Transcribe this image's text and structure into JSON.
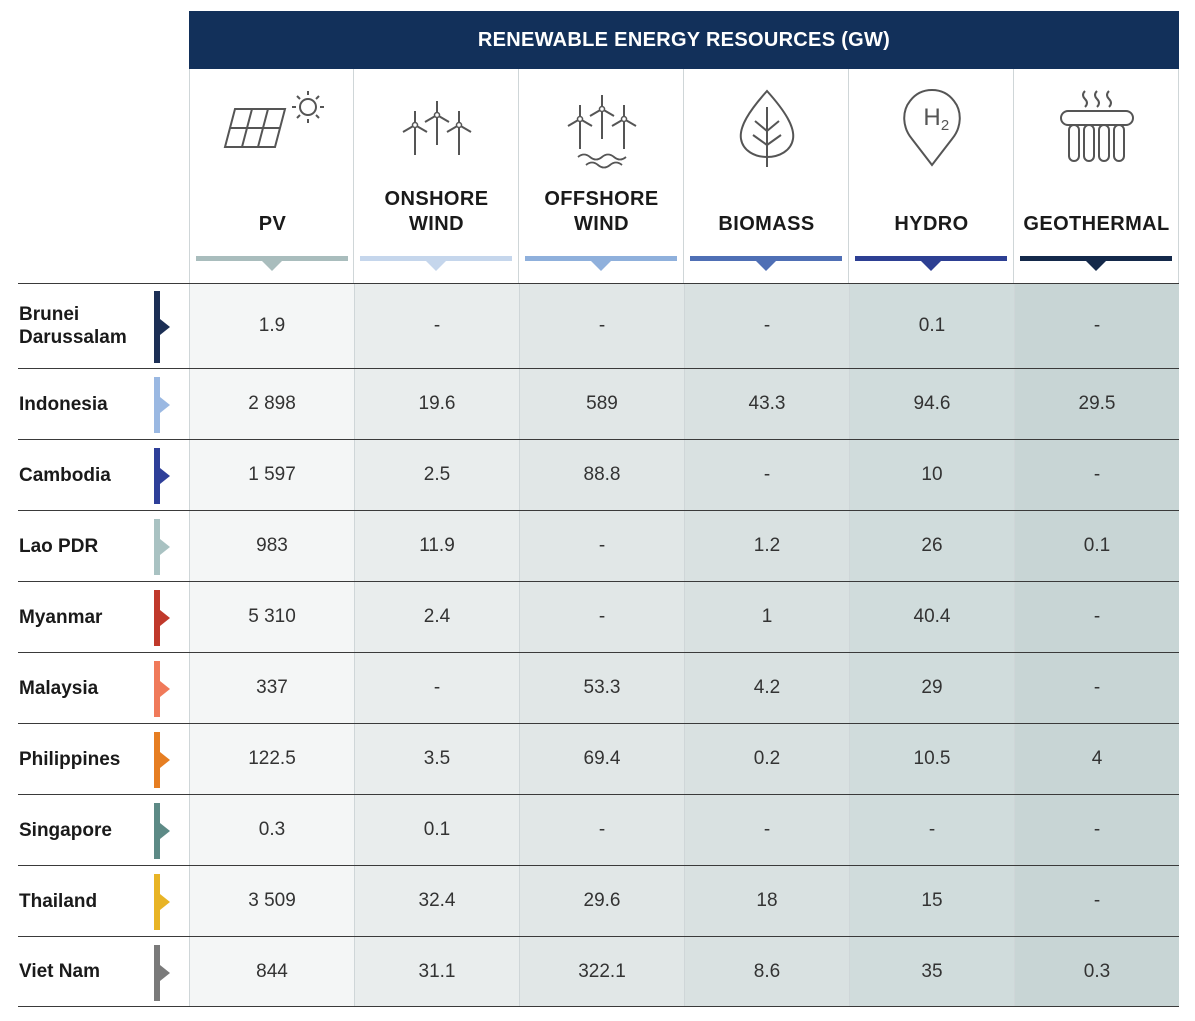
{
  "title": "RENEWABLE ENERGY RESOURCES (GW)",
  "columns": [
    {
      "label": "PV",
      "icon": "solar-panel-icon",
      "color": "#a9bdbd"
    },
    {
      "label": "ONSHORE\nWIND",
      "icon": "wind-turbine-icon",
      "color": "#c5d6ec"
    },
    {
      "label": "OFFSHORE\nWIND",
      "icon": "offshore-wind-icon",
      "color": "#8fb0dc"
    },
    {
      "label": "BIOMASS",
      "icon": "leaf-icon",
      "color": "#4f6fb5"
    },
    {
      "label": "HYDRO",
      "icon": "hydrogen-pin-icon",
      "color": "#2d3f93"
    },
    {
      "label": "GEOTHERMAL",
      "icon": "geothermal-icon",
      "color": "#14294a"
    }
  ],
  "column_bg": [
    "#f4f6f6",
    "#e9eded",
    "#e1e7e7",
    "#d9e1e1",
    "#d0dcdc",
    "#c8d5d5"
  ],
  "rows": [
    {
      "country": "Brunei\nDarussalam",
      "color": "#1c2f55",
      "values": [
        "1.9",
        "-",
        "-",
        "-",
        "0.1",
        "-"
      ]
    },
    {
      "country": "Indonesia",
      "color": "#9ab8e2",
      "values": [
        "2 898",
        "19.6",
        "589",
        "43.3",
        "94.6",
        "29.5"
      ]
    },
    {
      "country": "Cambodia",
      "color": "#2e3f99",
      "values": [
        "1 597",
        "2.5",
        "88.8",
        "-",
        "10",
        "-"
      ]
    },
    {
      "country": "Lao PDR",
      "color": "#a9c2c2",
      "values": [
        "983",
        "11.9",
        "-",
        "1.2",
        "26",
        "0.1"
      ]
    },
    {
      "country": "Myanmar",
      "color": "#c0392b",
      "values": [
        "5 310",
        "2.4",
        "-",
        "1",
        "40.4",
        "-"
      ]
    },
    {
      "country": "Malaysia",
      "color": "#f07a5a",
      "values": [
        "337",
        "-",
        "53.3",
        "4.2",
        "29",
        "-"
      ]
    },
    {
      "country": "Philippines",
      "color": "#e67e22",
      "values": [
        "122.5",
        "3.5",
        "69.4",
        "0.2",
        "10.5",
        "4"
      ]
    },
    {
      "country": "Singapore",
      "color": "#5d8a86",
      "values": [
        "0.3",
        "0.1",
        "-",
        "-",
        "-",
        "-"
      ]
    },
    {
      "country": "Thailand",
      "color": "#e8b426",
      "values": [
        "3 509",
        "32.4",
        "29.6",
        "18",
        "15",
        "-"
      ]
    },
    {
      "country": "Viet Nam",
      "color": "#7a7a7a",
      "values": [
        "844",
        "31.1",
        "322.1",
        "8.6",
        "35",
        "0.3"
      ]
    }
  ]
}
